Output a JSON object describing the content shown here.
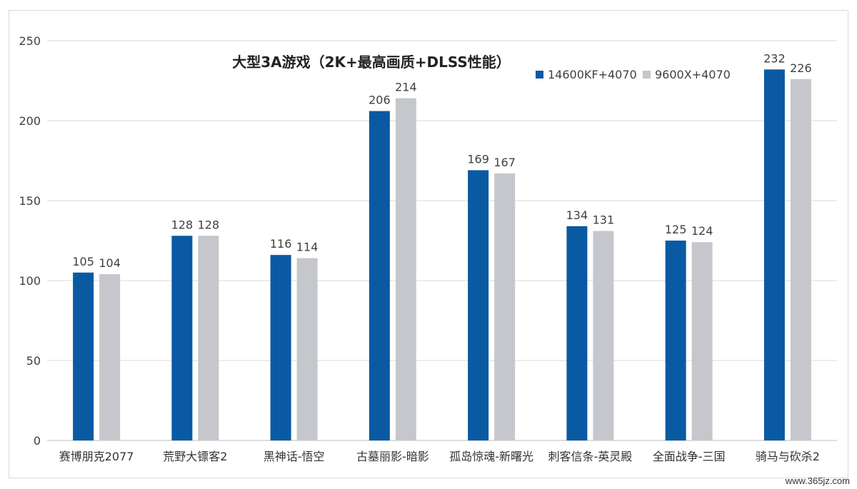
{
  "chart_data": {
    "type": "bar",
    "title": "大型3A游戏（2K+最高画质+DLSS性能）",
    "categories": [
      "赛博朋克2077",
      "荒野大镖客2",
      "黑神话-悟空",
      "古墓丽影-暗影",
      "孤岛惊魂-新曙光",
      "刺客信条-英灵殿",
      "全面战争-三国",
      "骑马与砍杀2"
    ],
    "series": [
      {
        "name": "14600KF+4070",
        "color": "#0a5aa3",
        "values": [
          105,
          128,
          116,
          206,
          169,
          134,
          125,
          232
        ]
      },
      {
        "name": "9600X+4070",
        "color": "#c5c7cc",
        "values": [
          104,
          128,
          114,
          214,
          167,
          131,
          124,
          226
        ]
      }
    ],
    "ylim": [
      0,
      250
    ],
    "yticks": [
      0,
      50,
      100,
      150,
      200,
      250
    ],
    "xlabel": "",
    "ylabel": "",
    "grid": true,
    "legend_position": "top-right",
    "data_labels": true
  },
  "watermark": "www.365jz.com"
}
